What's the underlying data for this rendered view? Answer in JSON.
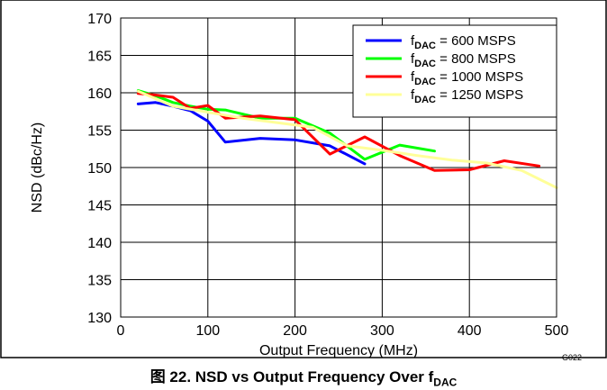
{
  "figure_code": "G022",
  "caption": {
    "prefix": "图 22. NSD vs Output Frequency Over f",
    "subscript": "DAC"
  },
  "chart_data": {
    "type": "line",
    "title": "",
    "xlabel": "Output Frequency (MHz)",
    "ylabel": "NSD (dBc/Hz)",
    "xlim": [
      0,
      500
    ],
    "ylim": [
      130,
      170
    ],
    "xticks": [
      0,
      100,
      200,
      300,
      400,
      500
    ],
    "yticks": [
      130,
      135,
      140,
      145,
      150,
      155,
      160,
      165,
      170
    ],
    "grid": true,
    "legend_position": "top-right",
    "legend_label_prefix": "f",
    "legend_label_subscript": "DAC",
    "series": [
      {
        "name": "f DAC = 600 MSPS",
        "legend_suffix": " = 600 MSPS",
        "color": "#0000ff",
        "x": [
          20,
          40,
          60,
          80,
          100,
          120,
          160,
          200,
          240,
          280
        ],
        "y": [
          158.5,
          158.7,
          158.2,
          157.6,
          156.2,
          153.4,
          153.9,
          153.7,
          152.9,
          150.5
        ]
      },
      {
        "name": "f DAC = 800 MSPS",
        "legend_suffix": " = 800 MSPS",
        "color": "#00ff00",
        "x": [
          20,
          40,
          60,
          80,
          100,
          120,
          160,
          200,
          240,
          280,
          320,
          360
        ],
        "y": [
          160.3,
          159.6,
          158.7,
          158.2,
          157.8,
          157.7,
          156.6,
          156.6,
          154.6,
          151.1,
          153.0,
          152.2
        ]
      },
      {
        "name": "f DAC = 1000 MSPS",
        "legend_suffix": " = 1000 MSPS",
        "color": "#ff0000",
        "x": [
          20,
          40,
          60,
          80,
          100,
          120,
          160,
          200,
          240,
          280,
          320,
          360,
          400,
          440,
          480
        ],
        "y": [
          159.9,
          159.7,
          159.4,
          157.9,
          158.3,
          156.6,
          156.9,
          156.4,
          151.8,
          154.1,
          151.6,
          149.6,
          149.7,
          150.9,
          150.2
        ]
      },
      {
        "name": "f DAC = 1250 MSPS",
        "legend_suffix": " = 1250 MSPS",
        "color": "#ffff99",
        "x": [
          20,
          60,
          100,
          140,
          180,
          220,
          260,
          300,
          340,
          380,
          420,
          460,
          500
        ],
        "y": [
          160.2,
          158.2,
          157.4,
          156.6,
          156.0,
          155.4,
          152.9,
          152.3,
          151.6,
          151.0,
          150.6,
          149.6,
          147.3
        ]
      }
    ]
  }
}
